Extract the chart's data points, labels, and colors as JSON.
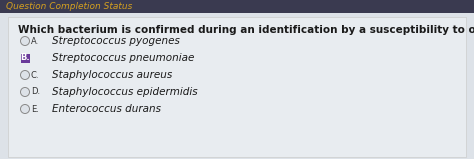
{
  "header": "Question Completion Status",
  "question": "Which bacterium is confirmed during an identification by a susceptibility to optochin (Taxo P)?",
  "options": [
    {
      "letter": "A.",
      "text": "Streptococcus pyogenes",
      "selected": false
    },
    {
      "letter": "B.",
      "text": "Streptococcus pneumoniae",
      "selected": true
    },
    {
      "letter": "C.",
      "text": "Staphylococcus aureus",
      "selected": false
    },
    {
      "letter": "D.",
      "text": "Staphylococcus epidermidis",
      "selected": false
    },
    {
      "letter": "E.",
      "text": "Enterococcus durans",
      "selected": false
    }
  ],
  "outer_bg": "#b8bcc4",
  "content_bg": "#dde2e8",
  "header_bg": "#3a3a50",
  "header_text_color": "#d4a020",
  "header_text_italic": true,
  "question_color": "#1a1a1a",
  "option_text_color": "#1a1a1a",
  "radio_edge_color": "#888888",
  "radio_face_color": "#dde2e8",
  "selected_box_color": "#6a3a9a",
  "selected_letter_color": "#ffffff",
  "unselected_letter_color": "#333333",
  "font_size_header": 6.5,
  "font_size_question": 7.5,
  "font_size_options": 7.5,
  "font_size_letters": 6.0
}
